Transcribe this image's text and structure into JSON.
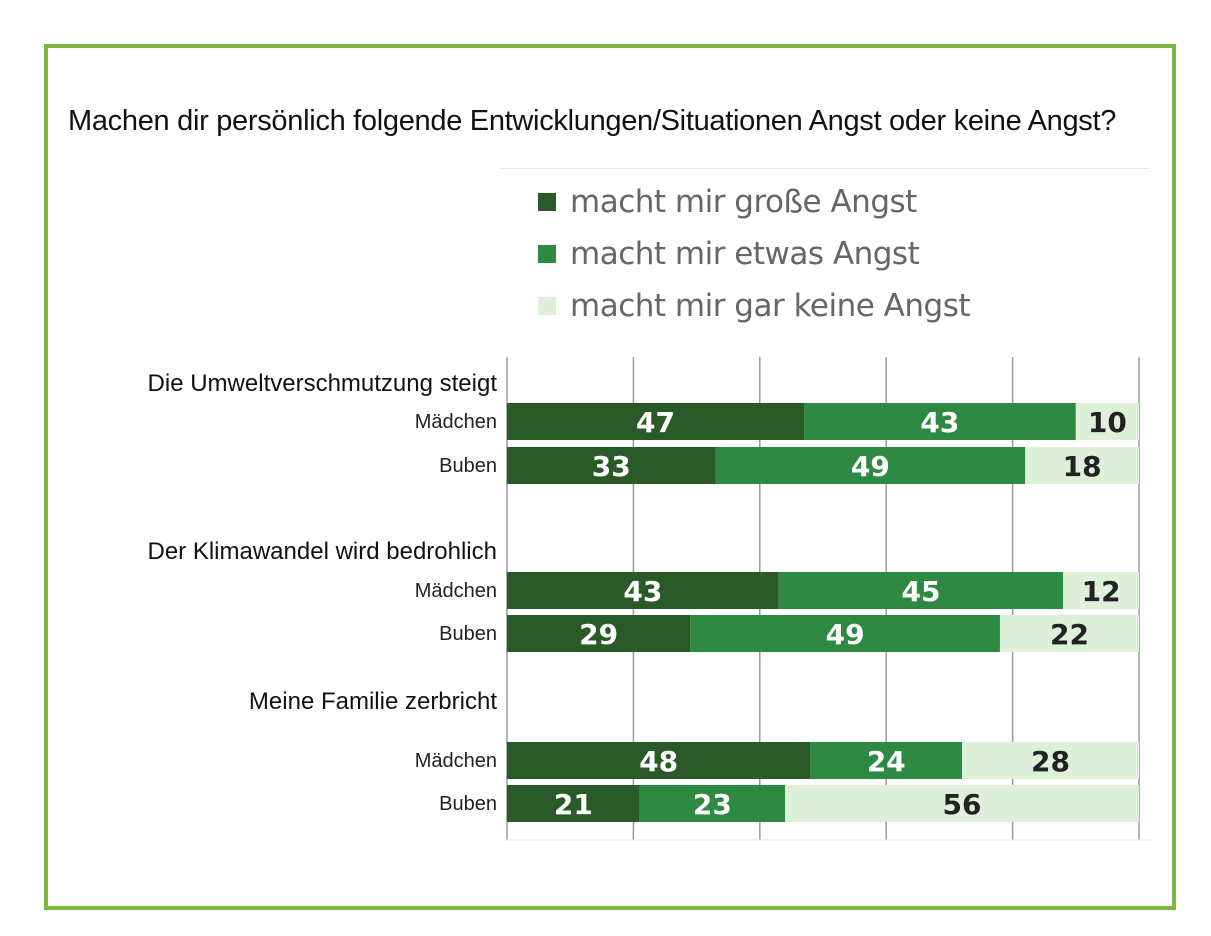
{
  "chart_data": {
    "type": "bar",
    "orientation": "horizontal",
    "stacked": true,
    "title": "Machen dir persönlich folgende Entwicklungen/Situationen Angst oder keine Angst?",
    "xlabel": "",
    "ylabel": "",
    "xlim": [
      0,
      100
    ],
    "grid": true,
    "legend_position": "top",
    "legend": [
      {
        "label": "macht mir große Angst",
        "color": "#2a5a27"
      },
      {
        "label": "macht mir etwas Angst",
        "color": "#2e8a42"
      },
      {
        "label": "macht mir gar keine Angst",
        "color": "#dff0da"
      }
    ],
    "categories": [
      {
        "label": "Die Umweltverschmutzung steigt",
        "groups": [
          {
            "label": "Mädchen",
            "values": [
              47,
              43,
              10
            ]
          },
          {
            "label": "Buben",
            "values": [
              33,
              49,
              18
            ]
          }
        ]
      },
      {
        "label": "Der Klimawandel wird bedrohlich",
        "groups": [
          {
            "label": "Mädchen",
            "values": [
              43,
              45,
              12
            ]
          },
          {
            "label": "Buben",
            "values": [
              29,
              49,
              22
            ]
          }
        ]
      },
      {
        "label": "Meine Familie zerbricht",
        "groups": [
          {
            "label": "Mädchen",
            "values": [
              48,
              24,
              28
            ]
          },
          {
            "label": "Buben",
            "values": [
              21,
              23,
              56
            ]
          }
        ]
      }
    ]
  },
  "colors": {
    "frame": "#7cb83e",
    "value_light": "#ffffff",
    "value_dark": "#222222"
  }
}
